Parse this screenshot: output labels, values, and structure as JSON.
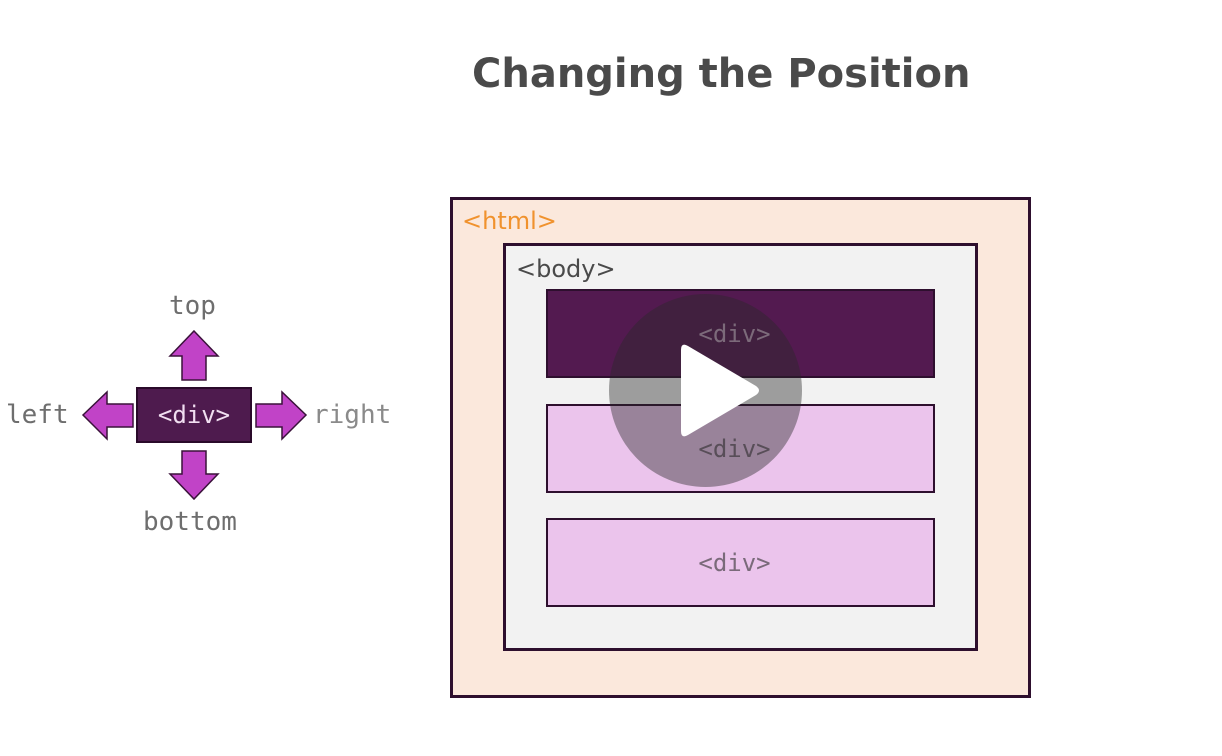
{
  "title": "Changing the Position",
  "legend": {
    "center": "<div>",
    "top": "top",
    "left": "left",
    "right": "right",
    "bottom": "bottom",
    "arrow_color": "#c143c7",
    "box_color": "#4e1b4e"
  },
  "diagram": {
    "html_label": "<html>",
    "body_label": "<body>",
    "divs": [
      {
        "label": "<div>",
        "style": "dark"
      },
      {
        "label": "<div>",
        "style": "light"
      },
      {
        "label": "<div>",
        "style": "light"
      }
    ],
    "colors": {
      "html_bg": "#fbe8dc",
      "html_label": "#f0922e",
      "body_bg": "#f2f2f2",
      "div_dark": "#531a50",
      "div_light": "#ebc4ec",
      "border": "#2e0f2e"
    }
  },
  "video": {
    "play_icon": "play-icon"
  }
}
